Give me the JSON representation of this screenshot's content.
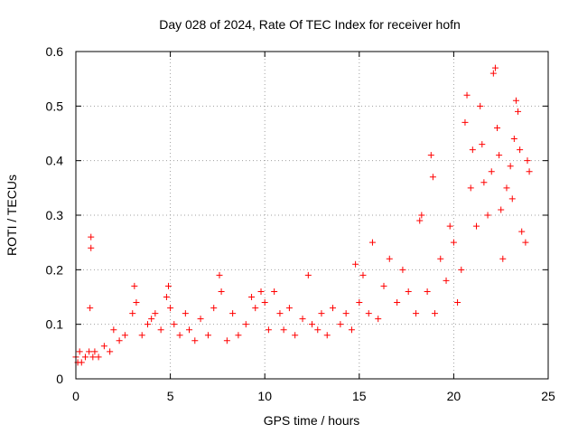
{
  "chart_data": {
    "type": "scatter",
    "title": "Day 028 of 2024, Rate Of TEC Index for receiver hofn",
    "xlabel": "GPS time / hours",
    "ylabel": "ROTI / TECUs",
    "xlim": [
      0,
      25
    ],
    "ylim": [
      0,
      0.6
    ],
    "grid": true,
    "marker": "+",
    "color": "#ff0000",
    "x_ticks": [
      0,
      5,
      10,
      15,
      20,
      25
    ],
    "x_tick_labels": [
      "0",
      "5",
      "10",
      "15",
      "20",
      "25"
    ],
    "y_ticks": [
      0,
      0.1,
      0.2,
      0.3,
      0.4,
      0.5,
      0.6
    ],
    "y_tick_labels": [
      "0",
      "0.1",
      "0.2",
      "0.3",
      "0.4",
      "0.5",
      "0.6"
    ],
    "series": [
      {
        "name": "ROTI",
        "x": [
          0.0,
          0.1,
          0.2,
          0.3,
          0.5,
          0.7,
          0.75,
          0.8,
          0.8,
          0.9,
          1.0,
          1.2,
          1.5,
          1.8,
          2.0,
          2.3,
          2.6,
          3.0,
          3.1,
          3.2,
          3.5,
          3.8,
          4.0,
          4.2,
          4.5,
          4.8,
          4.9,
          5.0,
          5.2,
          5.5,
          5.8,
          6.0,
          6.3,
          6.6,
          7.0,
          7.3,
          7.6,
          7.7,
          8.0,
          8.3,
          8.6,
          9.0,
          9.3,
          9.5,
          9.8,
          10.0,
          10.2,
          10.5,
          10.8,
          11.0,
          11.3,
          11.6,
          12.0,
          12.3,
          12.5,
          12.8,
          13.0,
          13.3,
          13.6,
          14.0,
          14.3,
          14.6,
          14.8,
          15.0,
          15.2,
          15.5,
          15.7,
          16.0,
          16.3,
          16.6,
          17.0,
          17.3,
          17.6,
          18.0,
          18.2,
          18.3,
          18.6,
          18.8,
          18.9,
          19.0,
          19.3,
          19.6,
          19.8,
          20.0,
          20.2,
          20.4,
          20.6,
          20.7,
          20.9,
          21.0,
          21.2,
          21.4,
          21.5,
          21.6,
          21.8,
          22.0,
          22.1,
          22.2,
          22.3,
          22.4,
          22.5,
          22.6,
          22.8,
          23.0,
          23.1,
          23.2,
          23.3,
          23.4,
          23.5,
          23.6,
          23.8,
          23.9,
          24.0
        ],
        "y": [
          0.04,
          0.03,
          0.05,
          0.03,
          0.04,
          0.05,
          0.13,
          0.26,
          0.24,
          0.04,
          0.05,
          0.04,
          0.06,
          0.05,
          0.09,
          0.07,
          0.08,
          0.12,
          0.17,
          0.14,
          0.08,
          0.1,
          0.11,
          0.12,
          0.09,
          0.15,
          0.17,
          0.13,
          0.1,
          0.08,
          0.12,
          0.09,
          0.07,
          0.11,
          0.08,
          0.13,
          0.19,
          0.16,
          0.07,
          0.12,
          0.08,
          0.1,
          0.15,
          0.13,
          0.16,
          0.14,
          0.09,
          0.16,
          0.12,
          0.09,
          0.13,
          0.08,
          0.11,
          0.19,
          0.1,
          0.09,
          0.12,
          0.08,
          0.13,
          0.1,
          0.12,
          0.09,
          0.21,
          0.14,
          0.19,
          0.12,
          0.25,
          0.11,
          0.17,
          0.22,
          0.14,
          0.2,
          0.16,
          0.12,
          0.29,
          0.3,
          0.16,
          0.41,
          0.37,
          0.12,
          0.22,
          0.18,
          0.28,
          0.25,
          0.14,
          0.2,
          0.47,
          0.52,
          0.35,
          0.42,
          0.28,
          0.5,
          0.43,
          0.36,
          0.3,
          0.38,
          0.56,
          0.57,
          0.46,
          0.41,
          0.31,
          0.22,
          0.35,
          0.39,
          0.33,
          0.44,
          0.51,
          0.49,
          0.42,
          0.27,
          0.25,
          0.4,
          0.38
        ]
      }
    ]
  }
}
